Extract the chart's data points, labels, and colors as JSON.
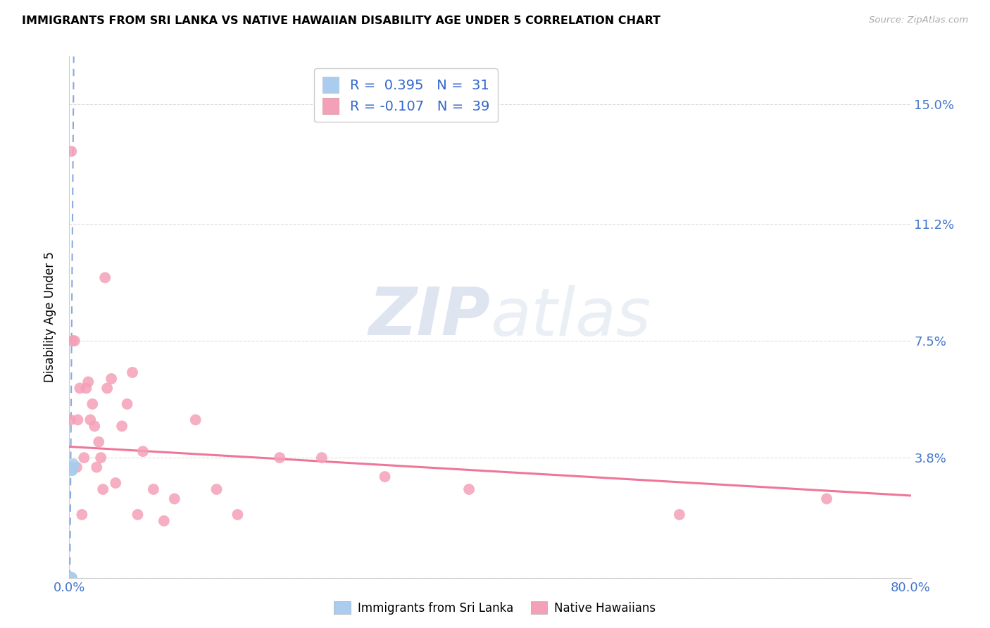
{
  "title": "IMMIGRANTS FROM SRI LANKA VS NATIVE HAWAIIAN DISABILITY AGE UNDER 5 CORRELATION CHART",
  "source": "Source: ZipAtlas.com",
  "ylabel": "Disability Age Under 5",
  "xlim": [
    0.0,
    0.8
  ],
  "ylim": [
    0.0,
    0.165
  ],
  "xticks": [
    0.0,
    0.2,
    0.4,
    0.6,
    0.8
  ],
  "xticklabels": [
    "0.0%",
    "",
    "",
    "",
    "80.0%"
  ],
  "ytick_positions": [
    0.0,
    0.038,
    0.075,
    0.112,
    0.15
  ],
  "yticklabels": [
    "",
    "3.8%",
    "7.5%",
    "11.2%",
    "15.0%"
  ],
  "sri_lanka_R": 0.395,
  "sri_lanka_N": 31,
  "native_hawaiian_R": -0.107,
  "native_hawaiian_N": 39,
  "sri_lanka_color": "#aaccee",
  "native_hawaiian_color": "#f4a0b8",
  "sri_lanka_trend_color": "#88aadd",
  "native_hawaiian_trend_color": "#ee7799",
  "watermark_zip": "ZIP",
  "watermark_atlas": "atlas",
  "legend_sri_lanka": "Immigrants from Sri Lanka",
  "legend_native_hawaiians": "Native Hawaiians",
  "sri_lanka_x": [
    0.0008,
    0.0008,
    0.0008,
    0.0009,
    0.0009,
    0.001,
    0.001,
    0.001,
    0.001,
    0.0011,
    0.0011,
    0.0012,
    0.0012,
    0.0013,
    0.0013,
    0.0014,
    0.0015,
    0.0015,
    0.0016,
    0.0017,
    0.0018,
    0.0019,
    0.002,
    0.0021,
    0.0022,
    0.0024,
    0.0026,
    0.0028,
    0.0032,
    0.0036,
    0.004
  ],
  "sri_lanka_y": [
    0.0,
    0.0,
    0.0,
    0.0,
    0.0,
    0.0,
    0.0,
    0.0,
    0.0,
    0.0,
    0.0,
    0.0,
    0.0,
    0.0,
    0.0,
    0.0,
    0.0,
    0.0,
    0.0,
    0.0,
    0.0,
    0.0,
    0.0,
    0.0,
    0.0,
    0.0,
    0.034,
    0.034,
    0.035,
    0.035,
    0.036
  ],
  "native_hawaiian_x": [
    0.001,
    0.002,
    0.003,
    0.005,
    0.007,
    0.008,
    0.01,
    0.012,
    0.014,
    0.016,
    0.018,
    0.02,
    0.022,
    0.024,
    0.026,
    0.028,
    0.03,
    0.032,
    0.034,
    0.036,
    0.04,
    0.044,
    0.05,
    0.055,
    0.06,
    0.065,
    0.07,
    0.08,
    0.09,
    0.1,
    0.12,
    0.14,
    0.16,
    0.2,
    0.24,
    0.3,
    0.38,
    0.58,
    0.72
  ],
  "native_hawaiian_y": [
    0.05,
    0.135,
    0.075,
    0.075,
    0.035,
    0.05,
    0.06,
    0.02,
    0.038,
    0.06,
    0.062,
    0.05,
    0.055,
    0.048,
    0.035,
    0.043,
    0.038,
    0.028,
    0.095,
    0.06,
    0.063,
    0.03,
    0.048,
    0.055,
    0.065,
    0.02,
    0.04,
    0.028,
    0.018,
    0.025,
    0.05,
    0.028,
    0.02,
    0.038,
    0.038,
    0.032,
    0.028,
    0.02,
    0.025
  ],
  "sl_trend_x0": 0.0,
  "sl_trend_x1": 0.005,
  "nh_trend_x0": 0.0,
  "nh_trend_x1": 0.8,
  "nh_trend_y0": 0.0415,
  "nh_trend_y1": 0.026
}
